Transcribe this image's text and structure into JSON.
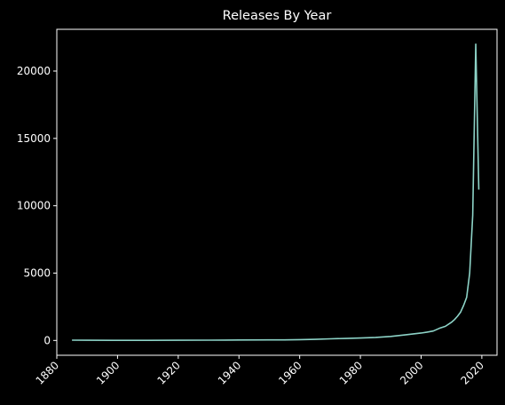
{
  "chart_data": {
    "type": "line",
    "title": "Releases By Year",
    "xlabel": "",
    "ylabel": "",
    "xlim": [
      1880,
      2025
    ],
    "ylim": [
      -1100,
      23100
    ],
    "x_ticks": [
      1880,
      1900,
      1920,
      1940,
      1960,
      1980,
      2000,
      2020
    ],
    "y_ticks": [
      0,
      5000,
      10000,
      15000,
      20000
    ],
    "grid": false,
    "colors": {
      "background": "#000000",
      "line": "#8dd3c7",
      "axis": "#ffffff",
      "text": "#ffffff"
    },
    "series": [
      {
        "x": [
          1885,
          1890,
          1900,
          1910,
          1920,
          1930,
          1940,
          1950,
          1955,
          1960,
          1965,
          1970,
          1975,
          1980,
          1985,
          1990,
          1995,
          2000,
          2002,
          2004,
          2006,
          2008,
          2010,
          2011,
          2012,
          2013,
          2014,
          2015,
          2016,
          2017,
          2018,
          2019
        ],
        "y": [
          20,
          15,
          10,
          10,
          15,
          20,
          30,
          40,
          45,
          55,
          80,
          120,
          150,
          180,
          220,
          300,
          420,
          550,
          620,
          700,
          900,
          1050,
          1350,
          1550,
          1800,
          2100,
          2600,
          3200,
          5000,
          9300,
          22000,
          11200
        ]
      }
    ]
  }
}
